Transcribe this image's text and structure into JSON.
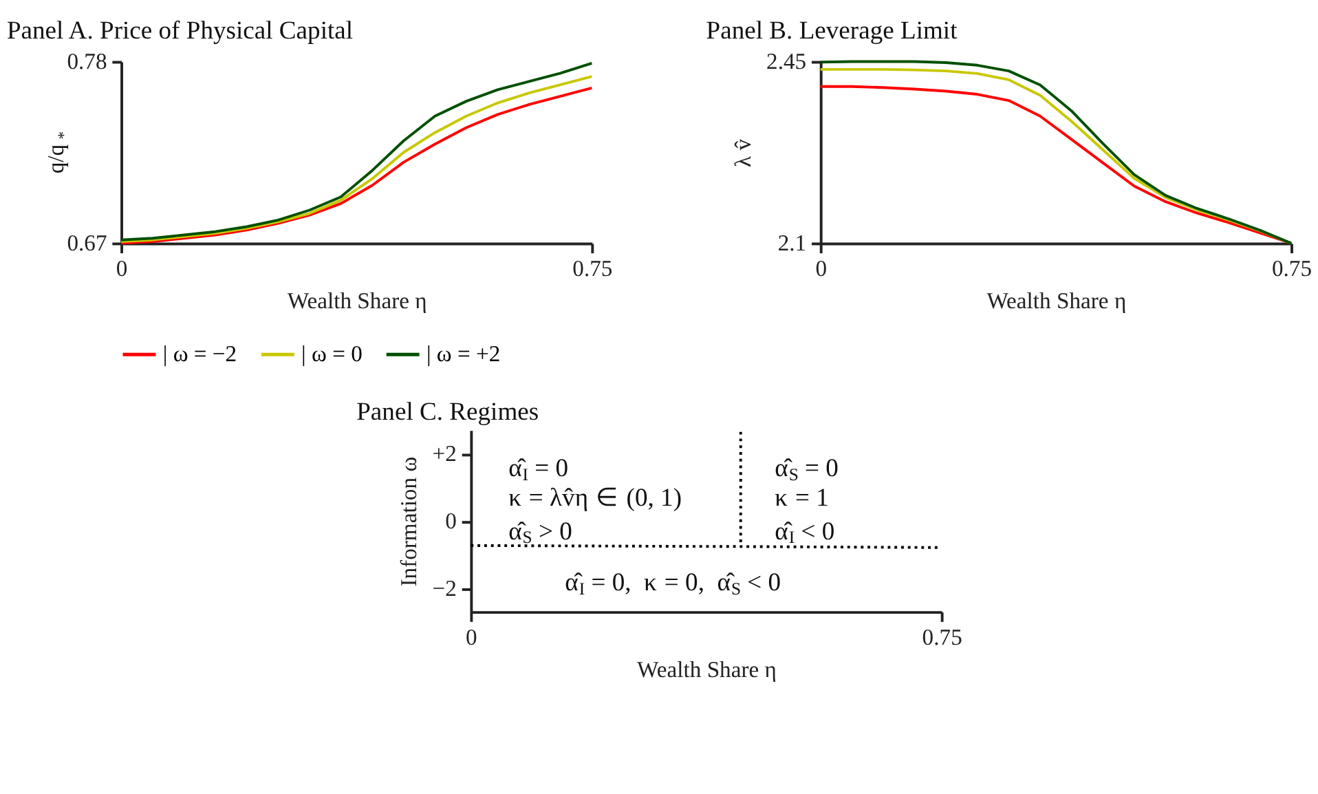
{
  "chart_data": [
    {
      "type": "line",
      "title": "Panel A. Price of Physical Capital",
      "xlabel": "Wealth Share η",
      "ylabel": "q/q$_{*}$",
      "x": [
        0,
        0.05,
        0.1,
        0.15,
        0.2,
        0.25,
        0.3,
        0.35,
        0.4,
        0.45,
        0.5,
        0.55,
        0.6,
        0.65,
        0.7,
        0.75
      ],
      "xlim": [
        0,
        0.75
      ],
      "xticks": [
        0,
        0.75
      ],
      "ylim": [
        0.67,
        0.78
      ],
      "yticks": [
        0.67,
        0.78
      ],
      "legend": "bottom",
      "series": [
        {
          "name": "| ω = −2",
          "color": "#ff0000",
          "values": [
            0.67,
            0.671,
            0.673,
            0.675,
            0.678,
            0.682,
            0.687,
            0.694,
            0.705,
            0.719,
            0.73,
            0.74,
            0.748,
            0.754,
            0.759,
            0.764
          ]
        },
        {
          "name": "| ω = 0",
          "color": "#c8c800",
          "values": [
            0.671,
            0.672,
            0.674,
            0.676,
            0.679,
            0.683,
            0.688,
            0.696,
            0.709,
            0.725,
            0.737,
            0.747,
            0.755,
            0.761,
            0.766,
            0.771
          ]
        },
        {
          "name": "| ω = +2",
          "color": "#005000",
          "values": [
            0.672,
            0.673,
            0.675,
            0.677,
            0.68,
            0.684,
            0.69,
            0.698,
            0.714,
            0.732,
            0.747,
            0.756,
            0.763,
            0.768,
            0.773,
            0.779
          ]
        }
      ]
    },
    {
      "type": "line",
      "title": "Panel B. Leverage Limit",
      "xlabel": "Wealth Share η",
      "ylabel": "λ v̂",
      "x": [
        0,
        0.05,
        0.1,
        0.15,
        0.2,
        0.25,
        0.3,
        0.35,
        0.4,
        0.45,
        0.5,
        0.55,
        0.6,
        0.65,
        0.7,
        0.75
      ],
      "xlim": [
        0,
        0.75
      ],
      "xticks": [
        0,
        0.75
      ],
      "ylim": [
        2.1,
        2.45
      ],
      "yticks": [
        2.45,
        2.1
      ],
      "legend": "bottom",
      "series": [
        {
          "name": "| ω = −2",
          "color": "#ff0000",
          "values": [
            2.402,
            2.402,
            2.4,
            2.397,
            2.393,
            2.387,
            2.375,
            2.345,
            2.3,
            2.255,
            2.21,
            2.18,
            2.158,
            2.14,
            2.12,
            2.1
          ]
        },
        {
          "name": "| ω = 0",
          "color": "#c8c800",
          "values": [
            2.435,
            2.435,
            2.435,
            2.434,
            2.432,
            2.427,
            2.415,
            2.385,
            2.335,
            2.28,
            2.225,
            2.188,
            2.164,
            2.145,
            2.124,
            2.1
          ]
        },
        {
          "name": "| ω = +2",
          "color": "#005000",
          "values": [
            2.449,
            2.45,
            2.45,
            2.45,
            2.448,
            2.443,
            2.432,
            2.405,
            2.355,
            2.292,
            2.232,
            2.192,
            2.167,
            2.147,
            2.125,
            2.1
          ]
        }
      ]
    },
    {
      "type": "line",
      "title": "Panel C. Regimes",
      "xlabel": "Wealth Share η",
      "ylabel": "Information ω",
      "xlim": [
        0,
        0.75
      ],
      "xticks": [
        0,
        0.75
      ],
      "ylim": [
        -2.7,
        2.7
      ],
      "yticks": [
        {
          "value": -2,
          "label": "−2"
        },
        0,
        {
          "value": 2,
          "label": "+2"
        }
      ],
      "series": [
        {
          "color": "#000000",
          "line_style": "dotted",
          "x": [
            0,
            0.43,
            0.75
          ],
          "values": [
            -0.73,
            -0.76,
            -0.79
          ]
        },
        {
          "color": "#000000",
          "line_style": "dotted",
          "x": [
            0.43,
            0.43
          ],
          "values": [
            2.65,
            -0.76
          ]
        }
      ],
      "annotations": [
        "α̂$_{I}$ = 0",
        "κ = λv̂η ∈ (0, 1)",
        "α̂$_{S}$ > 0",
        "α̂$_{S}$ = 0",
        "κ = 1",
        "α̂$_{I}$ < 0",
        "α̂$_{I}$ = 0,  κ = 0,  α̂$_{S}$ < 0"
      ]
    }
  ]
}
